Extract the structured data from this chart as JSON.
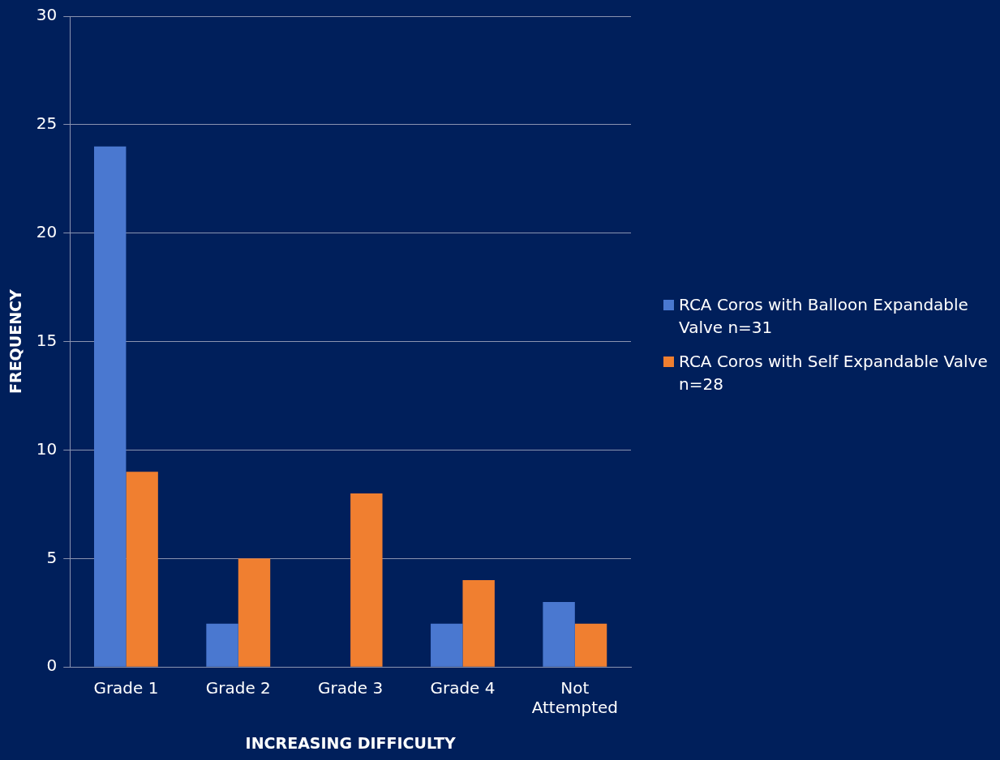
{
  "chart_data": {
    "type": "bar",
    "xlabel": "INCREASING DIFFICULTY",
    "ylabel": "FREQUENCY",
    "categories": [
      "Grade 1",
      "Grade 2",
      "Grade 3",
      "Grade 4",
      "Not Attempted"
    ],
    "series": [
      {
        "name": "RCA Coros with Balloon Expandable Valve n=31",
        "color": "#4a78d0",
        "values": [
          24,
          2,
          0,
          2,
          3
        ]
      },
      {
        "name": "RCA Coros with Self Expandable Valve n=28",
        "color": "#f07f30",
        "values": [
          9,
          5,
          8,
          4,
          2
        ]
      }
    ],
    "ylim": [
      0,
      30
    ],
    "yticks": [
      0,
      5,
      10,
      15,
      20,
      25,
      30
    ],
    "grid": "y",
    "legend": "right"
  }
}
